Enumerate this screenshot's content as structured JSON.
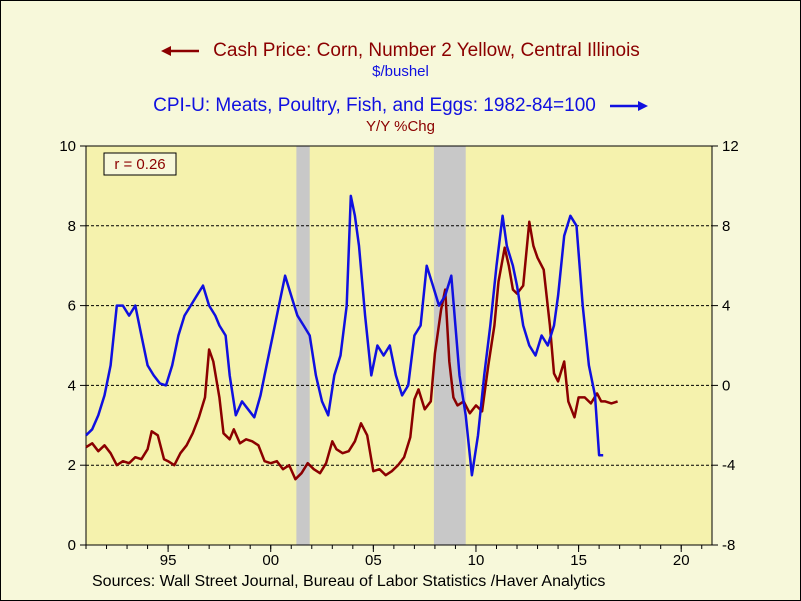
{
  "title_left": "Cash Price: Corn, Number 2 Yellow, Central Illinois",
  "unit_left": "$/bushel",
  "title_right": "CPI-U: Meats, Poultry, Fish, and Eggs: 1982-84=100",
  "unit_right": "Y/Y %Chg",
  "annotation": "r = 0.26",
  "source": "Sources:  Wall Street Journal, Bureau of Labor Statistics /Haver Analytics",
  "chart_data": {
    "type": "line",
    "background_color": "#f7f8da",
    "plot_background_color": "#f5f2ad",
    "recession_color": "#c8c8c8",
    "x_range": [
      1991.0,
      2021.5
    ],
    "x_ticks": [
      {
        "x": 1995,
        "label": "95"
      },
      {
        "x": 2000,
        "label": "00"
      },
      {
        "x": 2005,
        "label": "05"
      },
      {
        "x": 2010,
        "label": "10"
      },
      {
        "x": 2015,
        "label": "15"
      },
      {
        "x": 2020,
        "label": "20"
      }
    ],
    "y_left": {
      "range": [
        0,
        10
      ],
      "ticks": [
        0,
        2,
        4,
        6,
        8,
        10
      ],
      "label": "$/bushel"
    },
    "y_right": {
      "range": [
        -8,
        12
      ],
      "ticks": [
        -8,
        -4,
        0,
        4,
        8,
        12
      ],
      "label": "Y/Y %Chg"
    },
    "gridlines_left": [
      2,
      4,
      6,
      8
    ],
    "recessions": [
      [
        2001.25,
        2001.9
      ],
      [
        2007.95,
        2009.5
      ]
    ],
    "series": [
      {
        "name": "Cash Price: Corn, Number 2 Yellow, Central Illinois",
        "axis": "left",
        "color": "#8b0000",
        "points": [
          [
            1991.0,
            2.45
          ],
          [
            1991.3,
            2.55
          ],
          [
            1991.6,
            2.35
          ],
          [
            1991.9,
            2.5
          ],
          [
            1992.2,
            2.3
          ],
          [
            1992.5,
            2.0
          ],
          [
            1992.8,
            2.1
          ],
          [
            1993.1,
            2.05
          ],
          [
            1993.4,
            2.2
          ],
          [
            1993.7,
            2.15
          ],
          [
            1994.0,
            2.4
          ],
          [
            1994.2,
            2.85
          ],
          [
            1994.5,
            2.75
          ],
          [
            1994.8,
            2.15
          ],
          [
            1995.0,
            2.1
          ],
          [
            1995.3,
            2.0
          ],
          [
            1995.6,
            2.3
          ],
          [
            1995.9,
            2.5
          ],
          [
            1996.2,
            2.8
          ],
          [
            1996.5,
            3.2
          ],
          [
            1996.8,
            3.7
          ],
          [
            1997.0,
            4.9
          ],
          [
            1997.2,
            4.6
          ],
          [
            1997.5,
            3.7
          ],
          [
            1997.7,
            2.8
          ],
          [
            1998.0,
            2.65
          ],
          [
            1998.2,
            2.9
          ],
          [
            1998.5,
            2.55
          ],
          [
            1998.8,
            2.65
          ],
          [
            1999.1,
            2.6
          ],
          [
            1999.4,
            2.5
          ],
          [
            1999.7,
            2.1
          ],
          [
            2000.0,
            2.05
          ],
          [
            2000.3,
            2.1
          ],
          [
            2000.6,
            1.9
          ],
          [
            2000.9,
            2.0
          ],
          [
            2001.2,
            1.65
          ],
          [
            2001.5,
            1.8
          ],
          [
            2001.8,
            2.05
          ],
          [
            2002.1,
            1.9
          ],
          [
            2002.4,
            1.8
          ],
          [
            2002.7,
            2.05
          ],
          [
            2003.0,
            2.6
          ],
          [
            2003.2,
            2.4
          ],
          [
            2003.5,
            2.3
          ],
          [
            2003.8,
            2.35
          ],
          [
            2004.1,
            2.6
          ],
          [
            2004.4,
            3.05
          ],
          [
            2004.7,
            2.75
          ],
          [
            2005.0,
            1.85
          ],
          [
            2005.3,
            1.9
          ],
          [
            2005.6,
            1.75
          ],
          [
            2005.9,
            1.85
          ],
          [
            2006.2,
            2.0
          ],
          [
            2006.5,
            2.2
          ],
          [
            2006.8,
            2.7
          ],
          [
            2007.0,
            3.65
          ],
          [
            2007.2,
            3.9
          ],
          [
            2007.5,
            3.4
          ],
          [
            2007.8,
            3.6
          ],
          [
            2008.0,
            4.8
          ],
          [
            2008.3,
            5.9
          ],
          [
            2008.5,
            6.4
          ],
          [
            2008.7,
            4.6
          ],
          [
            2008.9,
            3.7
          ],
          [
            2009.1,
            3.5
          ],
          [
            2009.4,
            3.6
          ],
          [
            2009.7,
            3.3
          ],
          [
            2010.0,
            3.5
          ],
          [
            2010.3,
            3.35
          ],
          [
            2010.6,
            4.5
          ],
          [
            2010.9,
            5.5
          ],
          [
            2011.1,
            6.6
          ],
          [
            2011.4,
            7.45
          ],
          [
            2011.6,
            7.0
          ],
          [
            2011.8,
            6.4
          ],
          [
            2012.0,
            6.3
          ],
          [
            2012.3,
            6.5
          ],
          [
            2012.6,
            8.1
          ],
          [
            2012.8,
            7.5
          ],
          [
            2013.0,
            7.2
          ],
          [
            2013.3,
            6.9
          ],
          [
            2013.6,
            5.5
          ],
          [
            2013.8,
            4.3
          ],
          [
            2014.0,
            4.1
          ],
          [
            2014.3,
            4.6
          ],
          [
            2014.5,
            3.6
          ],
          [
            2014.8,
            3.2
          ],
          [
            2015.0,
            3.7
          ],
          [
            2015.3,
            3.7
          ],
          [
            2015.6,
            3.55
          ],
          [
            2015.9,
            3.8
          ],
          [
            2016.1,
            3.6
          ],
          [
            2016.3,
            3.6
          ],
          [
            2016.6,
            3.55
          ],
          [
            2016.9,
            3.6
          ]
        ]
      },
      {
        "name": "CPI-U: Meats, Poultry, Fish, and Eggs: 1982-84=100",
        "axis": "right",
        "color": "#1010e0",
        "points": [
          [
            1991.0,
            -2.5
          ],
          [
            1991.3,
            -2.2
          ],
          [
            1991.6,
            -1.5
          ],
          [
            1991.9,
            -0.5
          ],
          [
            1992.2,
            1.0
          ],
          [
            1992.5,
            4.0
          ],
          [
            1992.8,
            4.0
          ],
          [
            1993.1,
            3.5
          ],
          [
            1993.4,
            4.0
          ],
          [
            1993.7,
            2.5
          ],
          [
            1994.0,
            1.0
          ],
          [
            1994.3,
            0.5
          ],
          [
            1994.6,
            0.1
          ],
          [
            1994.9,
            0.0
          ],
          [
            1995.2,
            1.0
          ],
          [
            1995.5,
            2.5
          ],
          [
            1995.8,
            3.5
          ],
          [
            1996.1,
            4.0
          ],
          [
            1996.4,
            4.5
          ],
          [
            1996.7,
            5.0
          ],
          [
            1997.0,
            4.0
          ],
          [
            1997.3,
            3.5
          ],
          [
            1997.5,
            3.0
          ],
          [
            1997.8,
            2.5
          ],
          [
            1998.0,
            0.5
          ],
          [
            1998.3,
            -1.5
          ],
          [
            1998.6,
            -0.8
          ],
          [
            1998.9,
            -1.2
          ],
          [
            1999.2,
            -1.6
          ],
          [
            1999.5,
            -0.5
          ],
          [
            1999.8,
            1.0
          ],
          [
            2000.1,
            2.5
          ],
          [
            2000.4,
            4.0
          ],
          [
            2000.7,
            5.5
          ],
          [
            2001.0,
            4.5
          ],
          [
            2001.3,
            3.5
          ],
          [
            2001.6,
            3.0
          ],
          [
            2001.9,
            2.5
          ],
          [
            2002.2,
            0.5
          ],
          [
            2002.5,
            -0.8
          ],
          [
            2002.8,
            -1.5
          ],
          [
            2003.1,
            0.5
          ],
          [
            2003.4,
            1.5
          ],
          [
            2003.7,
            4.0
          ],
          [
            2003.9,
            9.5
          ],
          [
            2004.1,
            8.5
          ],
          [
            2004.3,
            7.0
          ],
          [
            2004.6,
            3.5
          ],
          [
            2004.9,
            0.5
          ],
          [
            2005.2,
            2.0
          ],
          [
            2005.5,
            1.5
          ],
          [
            2005.8,
            2.0
          ],
          [
            2006.1,
            0.5
          ],
          [
            2006.4,
            -0.5
          ],
          [
            2006.7,
            0.0
          ],
          [
            2007.0,
            2.5
          ],
          [
            2007.3,
            3.0
          ],
          [
            2007.6,
            6.0
          ],
          [
            2007.9,
            5.0
          ],
          [
            2008.2,
            4.0
          ],
          [
            2008.5,
            4.5
          ],
          [
            2008.8,
            5.5
          ],
          [
            2009.0,
            3.0
          ],
          [
            2009.2,
            0.5
          ],
          [
            2009.5,
            -1.5
          ],
          [
            2009.8,
            -4.5
          ],
          [
            2010.1,
            -2.5
          ],
          [
            2010.4,
            0.5
          ],
          [
            2010.7,
            3.0
          ],
          [
            2011.0,
            6.0
          ],
          [
            2011.3,
            8.5
          ],
          [
            2011.5,
            7.0
          ],
          [
            2011.8,
            6.0
          ],
          [
            2012.0,
            5.0
          ],
          [
            2012.3,
            3.0
          ],
          [
            2012.6,
            2.0
          ],
          [
            2012.9,
            1.5
          ],
          [
            2013.2,
            2.5
          ],
          [
            2013.5,
            2.0
          ],
          [
            2013.8,
            3.0
          ],
          [
            2014.0,
            4.5
          ],
          [
            2014.3,
            7.5
          ],
          [
            2014.6,
            8.5
          ],
          [
            2014.9,
            8.0
          ],
          [
            2015.2,
            4.0
          ],
          [
            2015.5,
            1.0
          ],
          [
            2015.8,
            -0.5
          ],
          [
            2016.0,
            -3.5
          ],
          [
            2016.2,
            -3.5
          ]
        ]
      }
    ]
  }
}
